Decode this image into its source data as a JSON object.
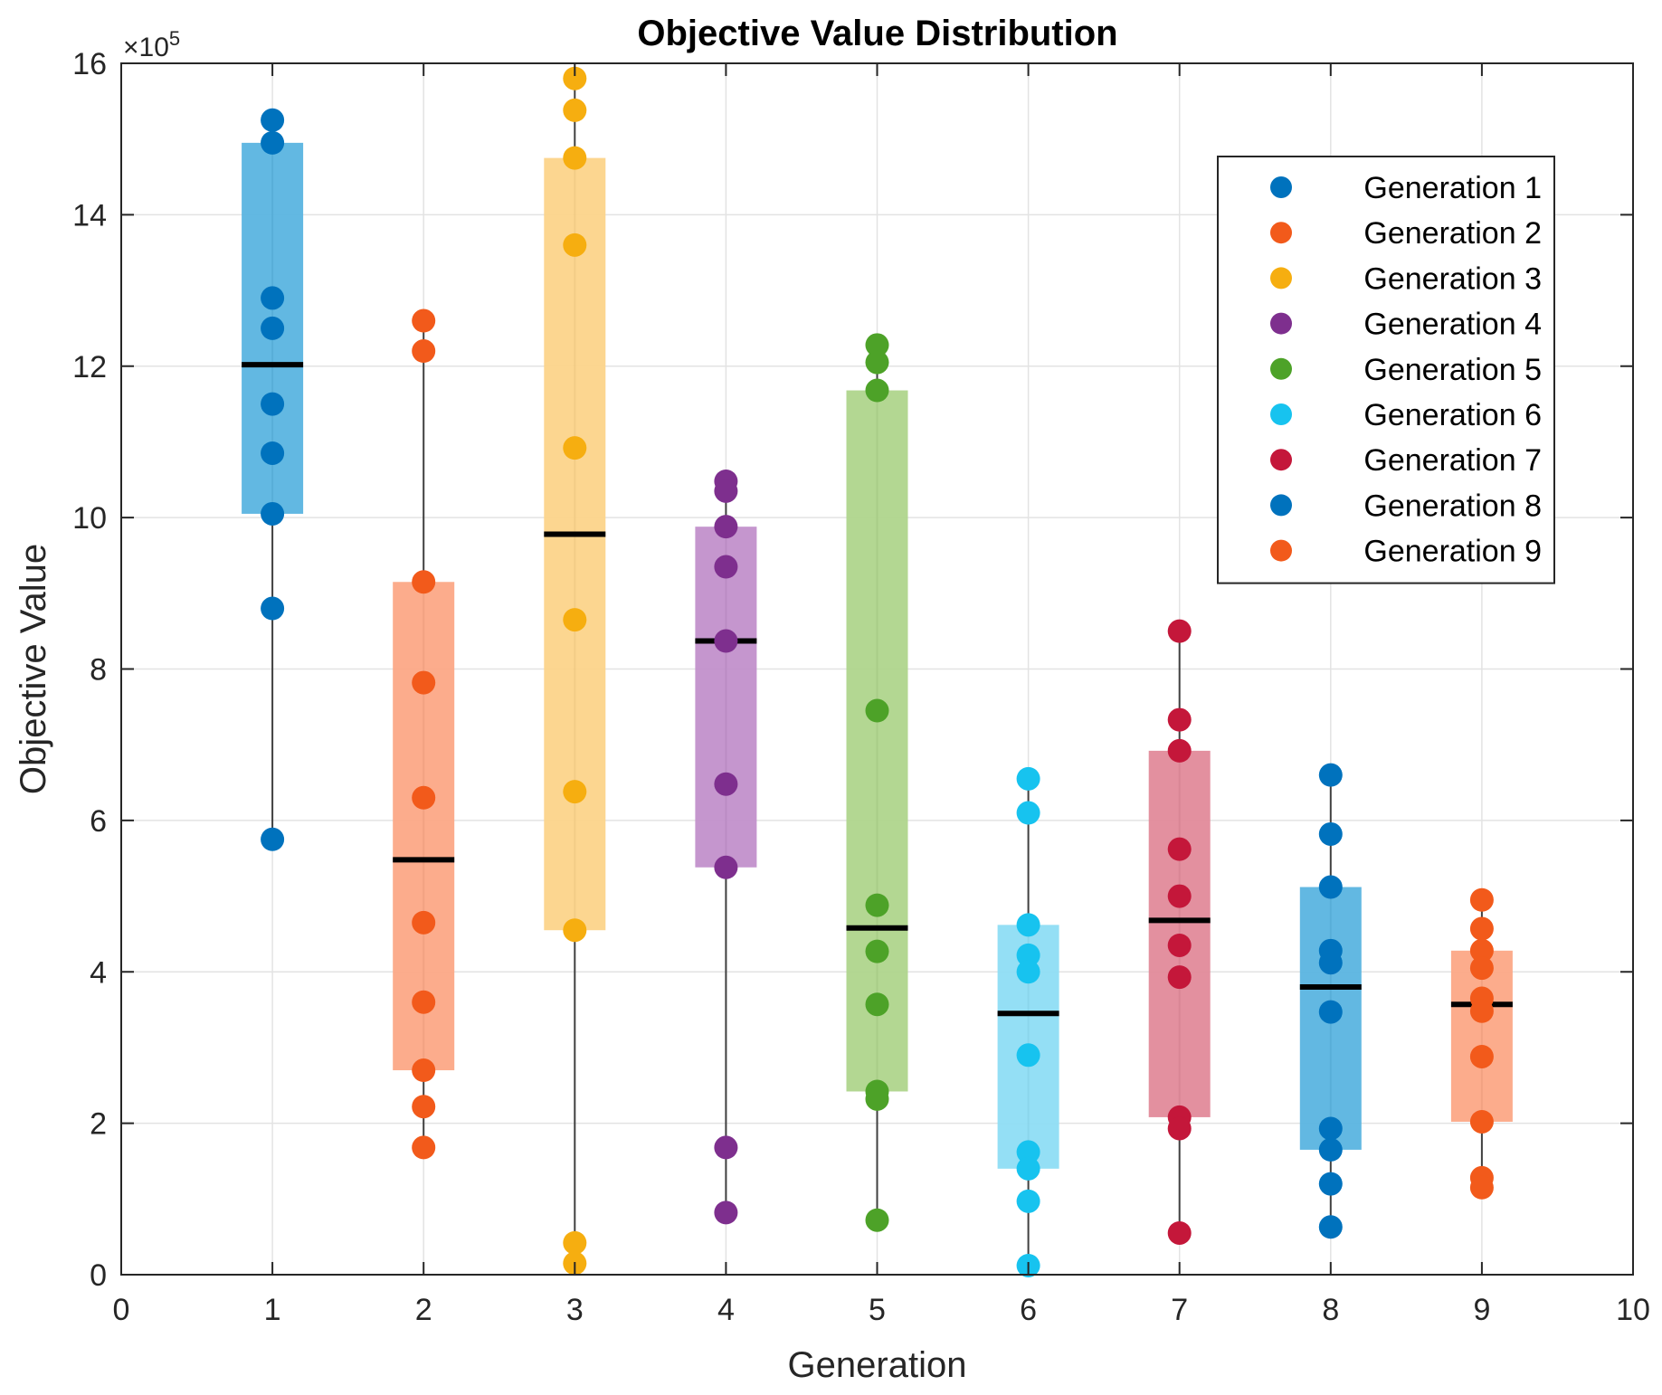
{
  "chart_data": {
    "type": "scatter",
    "subtype": "box-with-points",
    "title": "Objective Value Distribution",
    "xlabel": "Generation",
    "ylabel": "Objective Value",
    "y_multiplier_label": "×10",
    "y_multiplier_exponent": "5",
    "xlim": [
      0,
      10
    ],
    "ylim": [
      0,
      16
    ],
    "x_ticks": [
      "0",
      "1",
      "2",
      "3",
      "4",
      "5",
      "6",
      "7",
      "8",
      "9",
      "10"
    ],
    "y_ticks": [
      "0",
      "2",
      "4",
      "6",
      "8",
      "10",
      "12",
      "14",
      "16"
    ],
    "grid": true,
    "legend_position": "top-right",
    "series": [
      {
        "name": "Generation 1",
        "x": 1,
        "color": "#0072BD",
        "box_color": "#5AB4E0",
        "box": [
          10.05,
          14.95
        ],
        "median": 12.02,
        "whisker": [
          5.75,
          15.25
        ],
        "values": [
          15.25,
          14.95,
          12.9,
          12.5,
          11.5,
          10.85,
          10.05,
          8.8,
          5.75
        ]
      },
      {
        "name": "Generation 2",
        "x": 2,
        "color": "#F25A1B",
        "box_color": "#FCA886",
        "box": [
          2.7,
          9.15
        ],
        "median": 5.48,
        "whisker": [
          1.68,
          12.6
        ],
        "values": [
          12.6,
          12.2,
          9.15,
          7.82,
          6.3,
          4.65,
          3.6,
          2.7,
          2.22,
          1.68
        ]
      },
      {
        "name": "Generation 3",
        "x": 3,
        "color": "#F6AE10",
        "box_color": "#FCD48A",
        "box": [
          4.55,
          14.75
        ],
        "median": 9.78,
        "whisker": [
          0.15,
          15.8
        ],
        "values": [
          15.8,
          15.38,
          14.75,
          13.6,
          10.92,
          8.65,
          6.38,
          4.55,
          0.42,
          0.15
        ]
      },
      {
        "name": "Generation 4",
        "x": 4,
        "color": "#7E2F8E",
        "box_color": "#C290CB",
        "box": [
          5.38,
          9.88
        ],
        "median": 8.37,
        "whisker": [
          0.82,
          10.48
        ],
        "values": [
          10.48,
          10.35,
          9.88,
          9.35,
          8.37,
          6.48,
          5.38,
          1.68,
          0.82
        ]
      },
      {
        "name": "Generation 5",
        "x": 5,
        "color": "#4DA228",
        "box_color": "#AFD58C",
        "box": [
          2.42,
          11.68
        ],
        "median": 4.58,
        "whisker": [
          0.72,
          12.28
        ],
        "values": [
          12.28,
          12.05,
          11.68,
          7.45,
          4.88,
          4.27,
          3.57,
          2.42,
          2.32,
          0.72
        ]
      },
      {
        "name": "Generation 6",
        "x": 6,
        "color": "#17C3EF",
        "box_color": "#8EDDF4",
        "box": [
          1.4,
          4.62
        ],
        "median": 3.45,
        "whisker": [
          0.12,
          6.55
        ],
        "values": [
          6.55,
          6.1,
          4.62,
          4.22,
          4.0,
          2.9,
          1.62,
          1.4,
          0.97,
          0.12
        ]
      },
      {
        "name": "Generation 7",
        "x": 7,
        "color": "#C4173A",
        "box_color": "#E28A9A",
        "box": [
          2.08,
          6.92
        ],
        "median": 4.68,
        "whisker": [
          0.55,
          8.5
        ],
        "values": [
          8.5,
          7.33,
          6.92,
          5.62,
          5.0,
          4.35,
          3.93,
          2.08,
          1.93,
          0.55
        ]
      },
      {
        "name": "Generation 8",
        "x": 8,
        "color": "#0072BD",
        "box_color": "#5AB4E0",
        "box": [
          1.65,
          5.12
        ],
        "median": 3.8,
        "whisker": [
          0.63,
          6.6
        ],
        "values": [
          6.6,
          5.82,
          5.12,
          4.28,
          4.12,
          3.47,
          1.93,
          1.65,
          1.2,
          0.63
        ]
      },
      {
        "name": "Generation 9",
        "x": 9,
        "color": "#F25A1B",
        "box_color": "#FCA886",
        "box": [
          2.02,
          4.28
        ],
        "median": 3.57,
        "whisker": [
          1.15,
          4.95
        ],
        "values": [
          4.95,
          4.57,
          4.28,
          4.05,
          3.65,
          3.48,
          2.88,
          2.02,
          1.28,
          1.15
        ]
      }
    ]
  }
}
